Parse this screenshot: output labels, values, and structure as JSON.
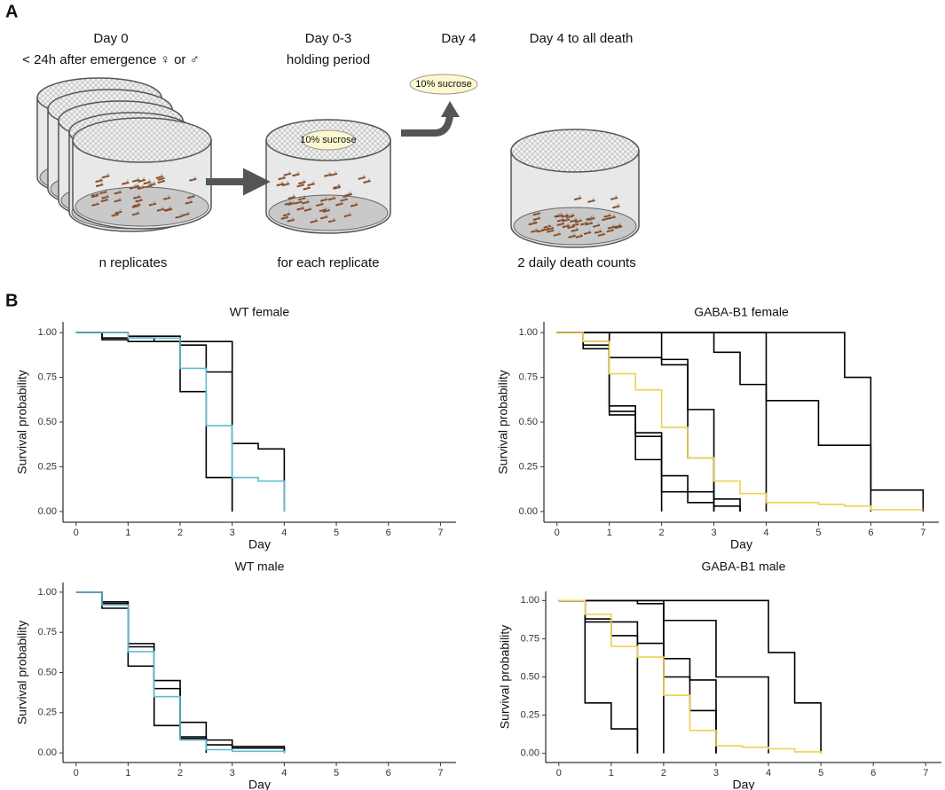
{
  "panel_a": {
    "label": "A",
    "day0": "Day 0",
    "day0_note": "< 24h after emergence ♀ or ♂",
    "day03": "Day 0-3",
    "day03_note": "holding period",
    "day4": "Day 4",
    "day4_death": "Day 4 to all death",
    "sucrose_cage": "10% sucrose",
    "sucrose_cloud": "10% sucrose",
    "replicates": "n replicates",
    "each": "for each replicate",
    "counts": "2 daily death counts"
  },
  "panel_b": {
    "label": "B"
  },
  "chart_data": [
    {
      "type": "step",
      "title": "WT female",
      "x_label": "Day",
      "y_label": "Survival probability",
      "xlim": [
        -0.25,
        7.3
      ],
      "ylim": [
        -0.06,
        1.06
      ],
      "xticks": [
        0,
        1,
        2,
        3,
        4,
        5,
        6,
        7
      ],
      "yticks": [
        {
          "value": 0,
          "label": "0.00"
        },
        {
          "value": 0.25,
          "label": "0.25"
        },
        {
          "value": 0.5,
          "label": "0.50"
        },
        {
          "value": 0.75,
          "label": "0.75"
        },
        {
          "value": 1,
          "label": "1.00"
        }
      ],
      "series": [
        {
          "color": "#000000",
          "x": [
            0,
            0.5,
            1,
            2,
            2.5,
            3,
            3.5,
            4
          ],
          "values": [
            1,
            1,
            0.98,
            0.93,
            0.78,
            0.38,
            0.35,
            0
          ]
        },
        {
          "color": "#000000",
          "x": [
            0,
            0.5,
            1,
            2,
            2.5,
            3
          ],
          "values": [
            1,
            0.96,
            0.95,
            0.67,
            0.19,
            0
          ]
        },
        {
          "color": "#000000",
          "x": [
            0,
            0.5,
            1.5,
            2,
            3
          ],
          "values": [
            1,
            0.97,
            0.95,
            0.95,
            0
          ]
        },
        {
          "color": "#5bbcd6",
          "x": [
            0,
            1,
            2,
            2.5,
            3,
            3.5,
            4
          ],
          "values": [
            1,
            0.97,
            0.8,
            0.48,
            0.19,
            0.17,
            0
          ]
        }
      ]
    },
    {
      "type": "step",
      "title": "GABA-B1 female",
      "x_label": "Day",
      "y_label": "Survival probability",
      "xlim": [
        -0.25,
        7.3
      ],
      "ylim": [
        -0.06,
        1.06
      ],
      "xticks": [
        0,
        1,
        2,
        3,
        4,
        5,
        6,
        7
      ],
      "yticks": [
        {
          "value": 0,
          "label": "0.00"
        },
        {
          "value": 0.25,
          "label": "0.25"
        },
        {
          "value": 0.5,
          "label": "0.50"
        },
        {
          "value": 0.75,
          "label": "0.75"
        },
        {
          "value": 1,
          "label": "1.00"
        }
      ],
      "series": [
        {
          "color": "#000000",
          "x": [
            0,
            0.5,
            1,
            1.5,
            2
          ],
          "values": [
            1,
            0.91,
            0.54,
            0.29,
            0
          ]
        },
        {
          "color": "#000000",
          "x": [
            0,
            0.5,
            1,
            1.5,
            2,
            2.5,
            3
          ],
          "values": [
            1,
            0.93,
            0.59,
            0.44,
            0.2,
            0.05,
            0
          ]
        },
        {
          "color": "#000000",
          "x": [
            0,
            0.5,
            1,
            1.5,
            2,
            3,
            3.5
          ],
          "values": [
            1,
            0.95,
            0.56,
            0.42,
            0.11,
            0.07,
            0
          ]
        },
        {
          "color": "#000000",
          "x": [
            0,
            1,
            2,
            2.5,
            3
          ],
          "values": [
            1,
            0.86,
            0.85,
            0.57,
            0
          ]
        },
        {
          "color": "#000000",
          "x": [
            0,
            2,
            2.5,
            3,
            3.5
          ],
          "values": [
            1,
            0.82,
            0.3,
            0.03,
            0
          ]
        },
        {
          "color": "#000000",
          "x": [
            0,
            3,
            3.5,
            4
          ],
          "values": [
            1,
            0.89,
            0.71,
            0
          ]
        },
        {
          "color": "#000000",
          "x": [
            0,
            4,
            5,
            6
          ],
          "values": [
            1,
            0.62,
            0.37,
            0
          ]
        },
        {
          "color": "#000000",
          "x": [
            0,
            5.5,
            6,
            7
          ],
          "values": [
            1,
            0.75,
            0.12,
            0
          ]
        },
        {
          "color": "#f0d050",
          "x": [
            0,
            0.5,
            1,
            1.5,
            2,
            2.5,
            3,
            3.5,
            4,
            5,
            5.5,
            6,
            7
          ],
          "values": [
            1,
            0.95,
            0.77,
            0.68,
            0.47,
            0.3,
            0.17,
            0.1,
            0.05,
            0.04,
            0.03,
            0.01,
            0.01
          ]
        }
      ]
    },
    {
      "type": "step",
      "title": "WT male",
      "x_label": "Day",
      "y_label": "Survival probability",
      "xlim": [
        -0.25,
        7.3
      ],
      "ylim": [
        -0.06,
        1.06
      ],
      "xticks": [
        0,
        1,
        2,
        3,
        4,
        5,
        6,
        7
      ],
      "yticks": [
        {
          "value": 0,
          "label": "0.00"
        },
        {
          "value": 0.25,
          "label": "0.25"
        },
        {
          "value": 0.5,
          "label": "0.50"
        },
        {
          "value": 0.75,
          "label": "0.75"
        },
        {
          "value": 1,
          "label": "1.00"
        }
      ],
      "series": [
        {
          "color": "#000000",
          "x": [
            0,
            0.5,
            1,
            1.5,
            2,
            2.5,
            3,
            4
          ],
          "values": [
            1,
            0.94,
            0.68,
            0.4,
            0.19,
            0.05,
            0.03,
            0
          ]
        },
        {
          "color": "#000000",
          "x": [
            0,
            0.5,
            1,
            1.5,
            2,
            2.5
          ],
          "values": [
            1,
            0.9,
            0.54,
            0.17,
            0.09,
            0
          ]
        },
        {
          "color": "#000000",
          "x": [
            0,
            0.5,
            1,
            1.5,
            2,
            2.5,
            3,
            4
          ],
          "values": [
            1,
            0.93,
            0.66,
            0.45,
            0.1,
            0.08,
            0.04,
            0
          ]
        },
        {
          "color": "#5bbcd6",
          "x": [
            0,
            0.5,
            1,
            1.5,
            2,
            2.5,
            3,
            4
          ],
          "values": [
            1,
            0.92,
            0.63,
            0.35,
            0.08,
            0.02,
            0.01,
            0
          ]
        }
      ]
    },
    {
      "type": "step",
      "title": "GABA-B1 male",
      "x_label": "Day",
      "y_label": "Survival probability",
      "xlim": [
        -0.25,
        7.3
      ],
      "ylim": [
        -0.06,
        1.06
      ],
      "xticks": [
        0,
        1,
        2,
        3,
        4,
        5,
        6,
        7
      ],
      "yticks": [
        {
          "value": 0,
          "label": "0.00"
        },
        {
          "value": 0.25,
          "label": "0.25"
        },
        {
          "value": 0.5,
          "label": "0.50"
        },
        {
          "value": 0.75,
          "label": "0.75"
        },
        {
          "value": 1,
          "label": "1.00"
        }
      ],
      "series": [
        {
          "color": "#000000",
          "x": [
            0,
            0.5,
            1,
            1.5
          ],
          "values": [
            1,
            0.33,
            0.16,
            0
          ]
        },
        {
          "color": "#000000",
          "x": [
            0,
            0.5,
            1,
            1.5
          ],
          "values": [
            1,
            0.88,
            0.86,
            0
          ]
        },
        {
          "color": "#000000",
          "x": [
            0,
            0.5,
            1,
            1.5,
            2
          ],
          "values": [
            1,
            0.86,
            0.77,
            0.72,
            0
          ]
        },
        {
          "color": "#000000",
          "x": [
            0,
            1.5,
            2,
            2.5,
            3
          ],
          "values": [
            1,
            0.98,
            0.5,
            0.48,
            0
          ]
        },
        {
          "color": "#000000",
          "x": [
            0,
            2,
            2.5,
            3
          ],
          "values": [
            1,
            0.62,
            0.28,
            0
          ]
        },
        {
          "color": "#000000",
          "x": [
            0,
            2,
            3,
            4
          ],
          "values": [
            1,
            0.87,
            0.5,
            0
          ]
        },
        {
          "color": "#000000",
          "x": [
            0,
            4,
            4.5,
            5
          ],
          "values": [
            1,
            0.66,
            0.33,
            0
          ]
        },
        {
          "color": "#f0d050",
          "x": [
            0,
            0.5,
            1,
            1.5,
            2,
            2.5,
            3,
            3.5,
            4,
            4.5,
            5
          ],
          "values": [
            1,
            0.91,
            0.7,
            0.63,
            0.38,
            0.15,
            0.05,
            0.04,
            0.03,
            0.01,
            0
          ]
        }
      ]
    }
  ]
}
